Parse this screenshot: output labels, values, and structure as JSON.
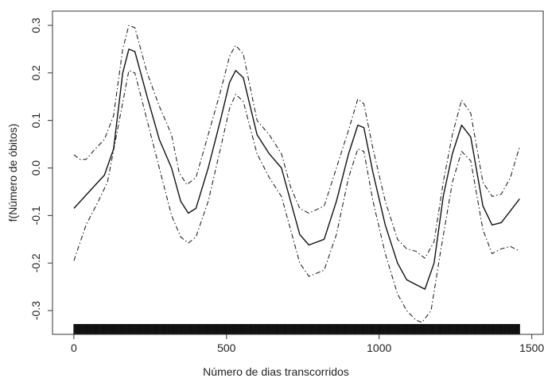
{
  "chart_data": {
    "type": "line",
    "title": "",
    "xlabel": "Número de dias transcorridos",
    "ylabel": "f(Número de óbitos)",
    "xlim": [
      -70,
      1540
    ],
    "ylim": [
      -0.35,
      0.33
    ],
    "x_ticks": [
      0,
      500,
      1000,
      1500
    ],
    "x_tick_labels": [
      "0",
      "500",
      "1000",
      "1500"
    ],
    "y_ticks": [
      -0.3,
      -0.2,
      -0.1,
      0.0,
      0.1,
      0.2,
      0.3
    ],
    "y_tick_labels": [
      "-0.3",
      "-0.2",
      "-0.1",
      "0.0",
      "0.1",
      "0.2",
      "0.3"
    ],
    "grid": false,
    "legend": "none",
    "rug": true,
    "rug_range": [
      0,
      1460
    ],
    "colors": {
      "line": "#111111",
      "axis": "#333333"
    },
    "series": [
      {
        "style": "solid",
        "points": [
          [
            0,
            -0.085
          ],
          [
            50,
            -0.05
          ],
          [
            100,
            -0.015
          ],
          [
            130,
            0.04
          ],
          [
            160,
            0.2
          ],
          [
            180,
            0.25
          ],
          [
            200,
            0.245
          ],
          [
            240,
            0.15
          ],
          [
            280,
            0.06
          ],
          [
            320,
            0.0
          ],
          [
            350,
            -0.07
          ],
          [
            375,
            -0.095
          ],
          [
            400,
            -0.085
          ],
          [
            440,
            0.0
          ],
          [
            480,
            0.1
          ],
          [
            510,
            0.18
          ],
          [
            530,
            0.205
          ],
          [
            555,
            0.19
          ],
          [
            600,
            0.07
          ],
          [
            640,
            0.03
          ],
          [
            680,
            0.0
          ],
          [
            710,
            -0.07
          ],
          [
            740,
            -0.14
          ],
          [
            770,
            -0.162
          ],
          [
            820,
            -0.15
          ],
          [
            860,
            -0.07
          ],
          [
            900,
            0.03
          ],
          [
            930,
            0.09
          ],
          [
            950,
            0.085
          ],
          [
            980,
            -0.01
          ],
          [
            1020,
            -0.12
          ],
          [
            1060,
            -0.2
          ],
          [
            1090,
            -0.235
          ],
          [
            1120,
            -0.245
          ],
          [
            1150,
            -0.255
          ],
          [
            1180,
            -0.2
          ],
          [
            1210,
            -0.06
          ],
          [
            1240,
            0.03
          ],
          [
            1270,
            0.09
          ],
          [
            1300,
            0.065
          ],
          [
            1340,
            -0.08
          ],
          [
            1370,
            -0.12
          ],
          [
            1400,
            -0.115
          ],
          [
            1430,
            -0.09
          ],
          [
            1460,
            -0.065
          ]
        ]
      },
      {
        "style": "dash-dot",
        "points": [
          [
            0,
            0.028
          ],
          [
            20,
            0.018
          ],
          [
            40,
            0.018
          ],
          [
            70,
            0.04
          ],
          [
            100,
            0.06
          ],
          [
            130,
            0.11
          ],
          [
            160,
            0.25
          ],
          [
            180,
            0.3
          ],
          [
            200,
            0.295
          ],
          [
            240,
            0.2
          ],
          [
            280,
            0.13
          ],
          [
            320,
            0.07
          ],
          [
            345,
            -0.01
          ],
          [
            370,
            -0.035
          ],
          [
            400,
            -0.02
          ],
          [
            440,
            0.07
          ],
          [
            480,
            0.16
          ],
          [
            510,
            0.235
          ],
          [
            530,
            0.258
          ],
          [
            555,
            0.24
          ],
          [
            600,
            0.1
          ],
          [
            640,
            0.07
          ],
          [
            680,
            0.03
          ],
          [
            710,
            -0.04
          ],
          [
            740,
            -0.085
          ],
          [
            770,
            -0.095
          ],
          [
            820,
            -0.08
          ],
          [
            860,
            0.0
          ],
          [
            900,
            0.08
          ],
          [
            930,
            0.145
          ],
          [
            950,
            0.135
          ],
          [
            980,
            0.04
          ],
          [
            1020,
            -0.07
          ],
          [
            1060,
            -0.15
          ],
          [
            1090,
            -0.17
          ],
          [
            1120,
            -0.175
          ],
          [
            1150,
            -0.19
          ],
          [
            1180,
            -0.155
          ],
          [
            1210,
            -0.03
          ],
          [
            1240,
            0.07
          ],
          [
            1270,
            0.143
          ],
          [
            1300,
            0.115
          ],
          [
            1340,
            -0.03
          ],
          [
            1370,
            -0.06
          ],
          [
            1400,
            -0.055
          ],
          [
            1430,
            -0.02
          ],
          [
            1460,
            0.045
          ]
        ]
      },
      {
        "style": "dash-dot",
        "points": [
          [
            0,
            -0.195
          ],
          [
            40,
            -0.12
          ],
          [
            80,
            -0.07
          ],
          [
            110,
            -0.03
          ],
          [
            140,
            0.07
          ],
          [
            180,
            0.205
          ],
          [
            200,
            0.2
          ],
          [
            240,
            0.1
          ],
          [
            280,
            0.0
          ],
          [
            320,
            -0.1
          ],
          [
            350,
            -0.145
          ],
          [
            375,
            -0.158
          ],
          [
            400,
            -0.145
          ],
          [
            440,
            -0.07
          ],
          [
            480,
            0.04
          ],
          [
            510,
            0.125
          ],
          [
            530,
            0.155
          ],
          [
            555,
            0.14
          ],
          [
            600,
            0.03
          ],
          [
            640,
            -0.02
          ],
          [
            680,
            -0.06
          ],
          [
            710,
            -0.13
          ],
          [
            740,
            -0.2
          ],
          [
            770,
            -0.228
          ],
          [
            820,
            -0.215
          ],
          [
            860,
            -0.14
          ],
          [
            900,
            -0.02
          ],
          [
            930,
            0.04
          ],
          [
            950,
            0.035
          ],
          [
            980,
            -0.07
          ],
          [
            1020,
            -0.18
          ],
          [
            1060,
            -0.265
          ],
          [
            1090,
            -0.3
          ],
          [
            1120,
            -0.32
          ],
          [
            1140,
            -0.325
          ],
          [
            1170,
            -0.3
          ],
          [
            1200,
            -0.18
          ],
          [
            1240,
            -0.03
          ],
          [
            1270,
            0.035
          ],
          [
            1300,
            0.015
          ],
          [
            1340,
            -0.13
          ],
          [
            1370,
            -0.18
          ],
          [
            1400,
            -0.17
          ],
          [
            1430,
            -0.165
          ],
          [
            1460,
            -0.175
          ]
        ]
      }
    ]
  }
}
